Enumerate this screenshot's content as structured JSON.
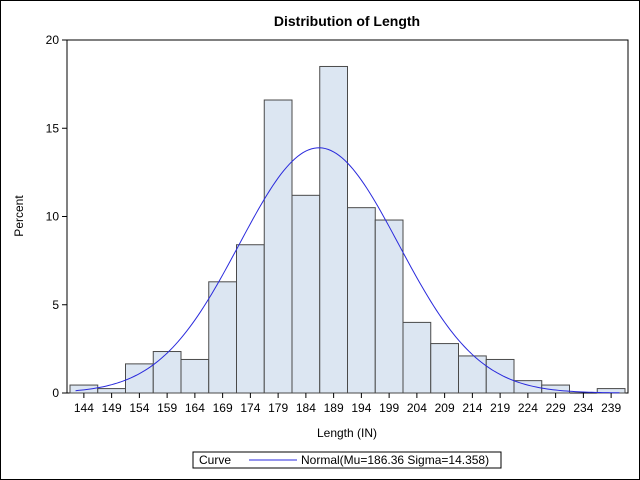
{
  "chart_data": {
    "type": "bar",
    "title": "Distribution of Length",
    "xlabel": "Length (IN)",
    "ylabel": "Percent",
    "categories": [
      "144",
      "149",
      "154",
      "159",
      "164",
      "169",
      "174",
      "179",
      "184",
      "189",
      "194",
      "199",
      "204",
      "209",
      "214",
      "219",
      "224",
      "229",
      "234",
      "239"
    ],
    "values": [
      0.45,
      0.25,
      1.65,
      2.35,
      1.9,
      6.3,
      8.4,
      16.6,
      11.2,
      18.5,
      10.5,
      9.8,
      4.0,
      2.8,
      2.1,
      1.9,
      0.7,
      0.45,
      0.0,
      0.25
    ],
    "bin_width": 5,
    "ylim": [
      0,
      20
    ],
    "yticks": [
      0,
      5,
      10,
      15,
      20
    ],
    "grid": false,
    "bar_fill": "#dce6f2",
    "bar_stroke": "#4a4a4a",
    "curve": {
      "type": "normal",
      "mu": 186.36,
      "sigma": 14.358,
      "color": "#2a2adc"
    },
    "legend": {
      "placement": "bottom",
      "header": "Curve",
      "entry": "Normal(Mu=186.36 Sigma=14.358)"
    }
  }
}
